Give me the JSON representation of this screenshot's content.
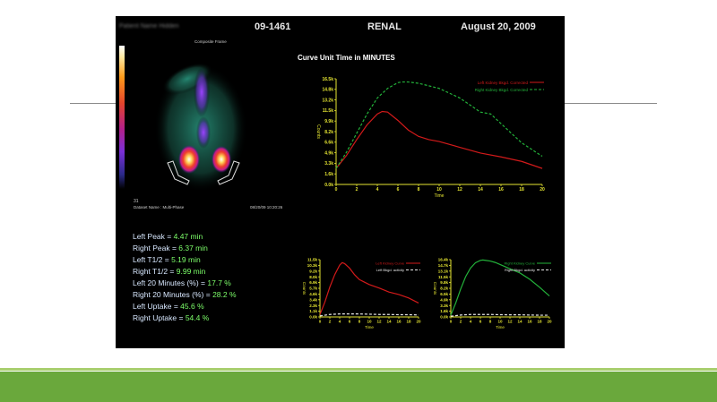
{
  "header": {
    "patient_name": "Patient Name Hidden",
    "study_id": "09-1461",
    "study_type": "RENAL",
    "date": "August 20, 2009"
  },
  "image_panel": {
    "frame_label": "Composite Frame",
    "frame_number": "31",
    "dataset_name": "Dataset Name : Multi-Phase",
    "timestamp": "08/20/09 10:20:26"
  },
  "stats": [
    {
      "label": "Left Peak = ",
      "value": "4.47 min"
    },
    {
      "label": "Right Peak = ",
      "value": "6.37 min"
    },
    {
      "label": "Left T1/2 = ",
      "value": "5.19 min"
    },
    {
      "label": "Right T1/2 = ",
      "value": "9.99 min"
    },
    {
      "label": "Left 20 Minutes (%) = ",
      "value": "17.7 %"
    },
    {
      "label": "Right 20 Minutes (%) = ",
      "value": "28.2 %"
    },
    {
      "label": "Left Uptake = ",
      "value": "45.6 %"
    },
    {
      "label": "Right Uptake = ",
      "value": "54.4 %"
    }
  ],
  "colors": {
    "left_series": "#d21a1a",
    "right_series": "#23b23a",
    "axis": "#e6e632",
    "footer": "#6aa83c"
  },
  "chart_data": [
    {
      "type": "line",
      "title": "Curve Unit Time in MINUTES",
      "xlabel": "Time",
      "ylabel": "Counts",
      "x_ticks": [
        0,
        2,
        4,
        6,
        8,
        10,
        12,
        14,
        16,
        18,
        20
      ],
      "y_ticks": [
        "0.0k",
        "1.6k",
        "3.3k",
        "4.9k",
        "6.6k",
        "8.2k",
        "9.9k",
        "11.5k",
        "13.2k",
        "14.8k",
        "16.5k"
      ],
      "xlim": [
        0,
        20
      ],
      "ylim": [
        0,
        16.5
      ],
      "legend_position": "top-right",
      "series": [
        {
          "name": "Left Kidney Bkgd. Corrected",
          "style": "solid",
          "color": "#d21a1a",
          "x": [
            0,
            1,
            2,
            3,
            4,
            4.47,
            5,
            6,
            7,
            8,
            9,
            10,
            12,
            14,
            16,
            18,
            20
          ],
          "y": [
            2.5,
            4.5,
            7,
            9.3,
            11,
            11.4,
            11.3,
            10,
            8.5,
            7.5,
            7,
            6.7,
            5.8,
            4.9,
            4.3,
            3.6,
            2.5
          ]
        },
        {
          "name": "Right Kidney Bkgd. Corrected",
          "style": "dashed",
          "color": "#23b23a",
          "x": [
            0,
            1,
            2,
            3,
            4,
            5,
            6,
            6.37,
            7,
            8,
            9,
            10,
            12,
            14,
            15,
            16,
            18,
            20
          ],
          "y": [
            2.5,
            5,
            8,
            11,
            13.5,
            15,
            15.9,
            16,
            16,
            15.8,
            15.4,
            15,
            13.5,
            11.3,
            11,
            9.5,
            6.5,
            4.4
          ]
        }
      ]
    },
    {
      "type": "line",
      "title": "",
      "xlabel": "Time",
      "ylabel": "Counts",
      "x_ticks": [
        0,
        2,
        4,
        6,
        8,
        10,
        12,
        14,
        16,
        18,
        20
      ],
      "y_ticks": [
        "0.0k",
        "1.1k",
        "2.3k",
        "3.4k",
        "4.6k",
        "5.7k",
        "6.9k",
        "8.0k",
        "9.2k",
        "10.3k",
        "11.5k"
      ],
      "xlim": [
        0,
        20
      ],
      "ylim": [
        0,
        11.5
      ],
      "legend_position": "top-right",
      "series": [
        {
          "name": "Left Kidney Curve",
          "style": "solid",
          "color": "#d21a1a",
          "x": [
            0,
            1,
            2,
            3,
            4,
            4.5,
            5,
            6,
            7,
            8,
            9,
            10,
            12,
            14,
            16,
            18,
            20
          ],
          "y": [
            0.5,
            3,
            6,
            8.5,
            10.4,
            10.9,
            10.7,
            9.8,
            8.5,
            7.5,
            7,
            6.5,
            5.8,
            5,
            4.5,
            3.8,
            2.8
          ]
        },
        {
          "name": "Left Bkgd. activity",
          "style": "dashed",
          "color": "#e8e8e8",
          "x": [
            0,
            2,
            4,
            6,
            8,
            10,
            12,
            14,
            16,
            18,
            20
          ],
          "y": [
            0.2,
            0.5,
            0.6,
            0.6,
            0.6,
            0.55,
            0.5,
            0.5,
            0.45,
            0.45,
            0.4
          ]
        }
      ]
    },
    {
      "type": "line",
      "title": "",
      "xlabel": "Time",
      "ylabel": "Counts",
      "x_ticks": [
        0,
        2,
        4,
        6,
        8,
        10,
        12,
        14,
        16,
        18,
        20
      ],
      "y_ticks": [
        "0.0k",
        "1.6k",
        "3.3k",
        "4.9k",
        "6.5k",
        "8.2k",
        "9.8k",
        "11.5k",
        "13.1k",
        "14.7k",
        "16.4k"
      ],
      "xlim": [
        0,
        20
      ],
      "ylim": [
        0,
        16.4
      ],
      "legend_position": "top-right",
      "series": [
        {
          "name": "Right Kidney Curve",
          "style": "solid",
          "color": "#23b23a",
          "x": [
            0,
            1,
            2,
            3,
            4,
            5,
            6,
            6.5,
            7,
            8,
            9,
            10,
            12,
            14,
            16,
            18,
            20
          ],
          "y": [
            0.5,
            4,
            8,
            11.5,
            14,
            15.5,
            16.2,
            16.3,
            16.2,
            16,
            15.6,
            15,
            13.8,
            12.6,
            10.8,
            8.5,
            6
          ]
        },
        {
          "name": "Right Bkgd. activity",
          "style": "dashed",
          "color": "#e8e8e8",
          "x": [
            0,
            2,
            4,
            6,
            8,
            10,
            12,
            14,
            16,
            18,
            20
          ],
          "y": [
            0.2,
            0.55,
            0.7,
            0.7,
            0.7,
            0.65,
            0.6,
            0.6,
            0.55,
            0.5,
            0.5
          ]
        }
      ]
    }
  ]
}
